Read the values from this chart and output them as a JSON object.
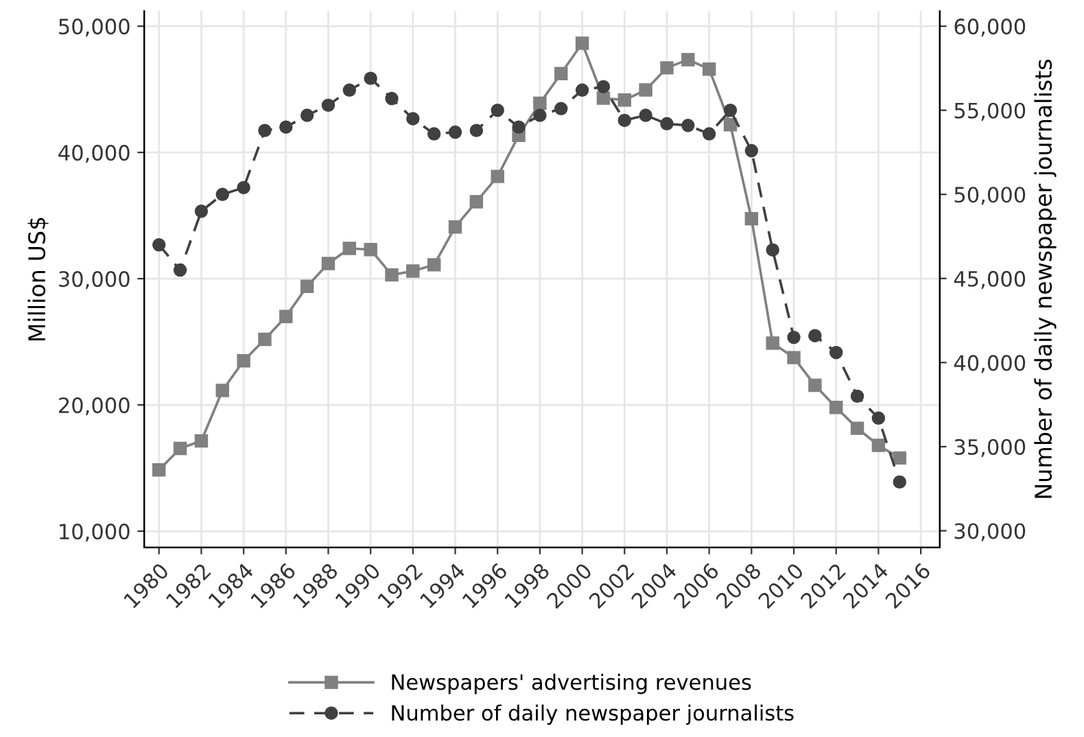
{
  "chart_data": {
    "type": "line",
    "ylabel": "Million US$",
    "y2label": "Number of daily newspaper journalists",
    "x": [
      1980,
      1981,
      1982,
      1983,
      1984,
      1985,
      1986,
      1987,
      1988,
      1989,
      1990,
      1991,
      1992,
      1993,
      1994,
      1995,
      1996,
      1997,
      1998,
      1999,
      2000,
      2001,
      2002,
      2003,
      2004,
      2005,
      2006,
      2007,
      2008,
      2009,
      2010,
      2011,
      2012,
      2013,
      2014,
      2015
    ],
    "series": [
      {
        "name": "Newspapers' advertising revenues",
        "color": "#808080",
        "marker": "square",
        "line_style": "solid",
        "values": [
          14850,
          16550,
          17150,
          21150,
          23500,
          25200,
          27000,
          29400,
          31200,
          32400,
          32300,
          30300,
          30600,
          31100,
          34100,
          36100,
          38100,
          41350,
          43900,
          46250,
          48650,
          44300,
          44150,
          44950,
          46700,
          47350,
          46600,
          42200,
          34750,
          24900,
          23750,
          21550,
          19800,
          18150,
          16800,
          15800
        ]
      },
      {
        "name": "Number of daily newspaper journalists",
        "color": "#404040",
        "marker": "circle",
        "line_style": "dashed",
        "axis": "y2",
        "values": [
          47000,
          45500,
          49000,
          50000,
          50400,
          53800,
          54000,
          54700,
          55300,
          56200,
          56900,
          55700,
          54500,
          53600,
          53700,
          53800,
          55000,
          54000,
          54700,
          55100,
          56200,
          56400,
          54400,
          54700,
          54200,
          54100,
          53600,
          55000,
          52600,
          46700,
          41500,
          41600,
          40600,
          38000,
          36700,
          32900
        ]
      }
    ],
    "xlim": [
      1979.3,
      2016.9
    ],
    "xticks": [
      1980,
      1982,
      1984,
      1986,
      1988,
      1990,
      1992,
      1994,
      1996,
      1998,
      2000,
      2002,
      2004,
      2006,
      2008,
      2010,
      2012,
      2014,
      2016
    ],
    "ylim": [
      8700,
      51200
    ],
    "yticks": [
      {
        "value": 10000,
        "label": "10,000"
      },
      {
        "value": 20000,
        "label": "20,000"
      },
      {
        "value": 30000,
        "label": "30,000"
      },
      {
        "value": 40000,
        "label": "40,000"
      },
      {
        "value": 50000,
        "label": "50,000"
      }
    ],
    "y2lim": [
      29000,
      60900
    ],
    "y2ticks": [
      {
        "value": 30000,
        "label": "30,000"
      },
      {
        "value": 35000,
        "label": "35,000"
      },
      {
        "value": 40000,
        "label": "40,000"
      },
      {
        "value": 45000,
        "label": "45,000"
      },
      {
        "value": 50000,
        "label": "50,000"
      },
      {
        "value": 55000,
        "label": "55,000"
      },
      {
        "value": 60000,
        "label": "60,000"
      }
    ],
    "grid": true,
    "legend": "bottom"
  }
}
